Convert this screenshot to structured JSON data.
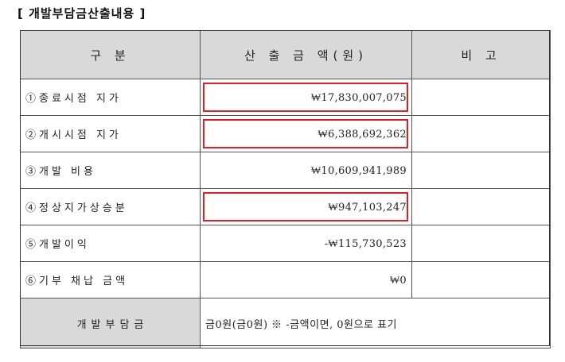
{
  "section_title": "[ 개발부담금산출내용 ]",
  "table": {
    "headers": [
      "구  분",
      "산 출 금 액(원)",
      "비  고"
    ],
    "rows": [
      {
        "label": "①종료시점  지가",
        "amount": "₩17,830,007,075",
        "remark": "",
        "highlighted": true
      },
      {
        "label": "②개시시점  지가",
        "amount": "₩6,388,692,362",
        "remark": "",
        "highlighted": true
      },
      {
        "label": "③개발  비용",
        "amount": "₩10,609,941,989",
        "remark": "",
        "highlighted": false
      },
      {
        "label": "④정상지가상승분",
        "amount": "₩947,103,247",
        "remark": "",
        "highlighted": true
      },
      {
        "label": "⑤개발이익",
        "amount": "-₩115,730,523",
        "remark": "",
        "highlighted": false
      },
      {
        "label": "⑥기부  채납  금액",
        "amount": "₩0",
        "remark": "",
        "highlighted": false
      }
    ],
    "footer": {
      "label": "개발부담금",
      "note": "금0원(금0원)  ※ -금액이면, 0원으로 표기"
    }
  },
  "colors": {
    "highlight_border": "#e02020",
    "header_bg": "#d9d9d9"
  }
}
